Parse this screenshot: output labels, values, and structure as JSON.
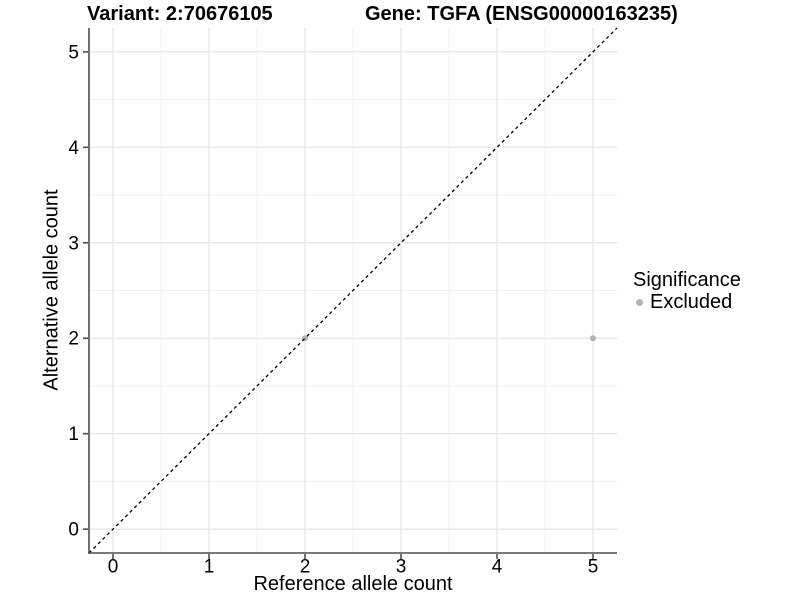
{
  "titles": {
    "variant": "Variant: 2:70676105",
    "gene": "Gene: TGFA (ENSG00000163235)"
  },
  "chart_data": {
    "type": "scatter",
    "xlabel": "Reference allele count",
    "ylabel": "Alternative allele count",
    "xlim": [
      -0.25,
      5.25
    ],
    "ylim": [
      -0.25,
      5.25
    ],
    "x_ticks": [
      0,
      1,
      2,
      3,
      4,
      5
    ],
    "y_ticks": [
      0,
      1,
      2,
      3,
      4,
      5
    ],
    "x_minor_ticks": [
      0.5,
      1.5,
      2.5,
      3.5,
      4.5
    ],
    "y_minor_ticks": [
      0.5,
      1.5,
      2.5,
      3.5,
      4.5
    ],
    "grid": "major+minor",
    "identity_line": {
      "slope": 1,
      "intercept": 0,
      "style": "dashed",
      "color": "#000000"
    },
    "series": [
      {
        "name": "Excluded",
        "color": "#b4b4b4",
        "points": [
          {
            "x": 2,
            "y": 2
          },
          {
            "x": 5,
            "y": 2
          }
        ]
      }
    ],
    "legend": {
      "title": "Significance",
      "position": "right",
      "entries": [
        {
          "label": "Excluded",
          "color": "#b4b4b4"
        }
      ]
    },
    "colors": {
      "grid_major": "#e4e4e4",
      "grid_minor": "#f1f1f1",
      "axis_line": "#4d4d4d",
      "text": "#000000"
    }
  }
}
